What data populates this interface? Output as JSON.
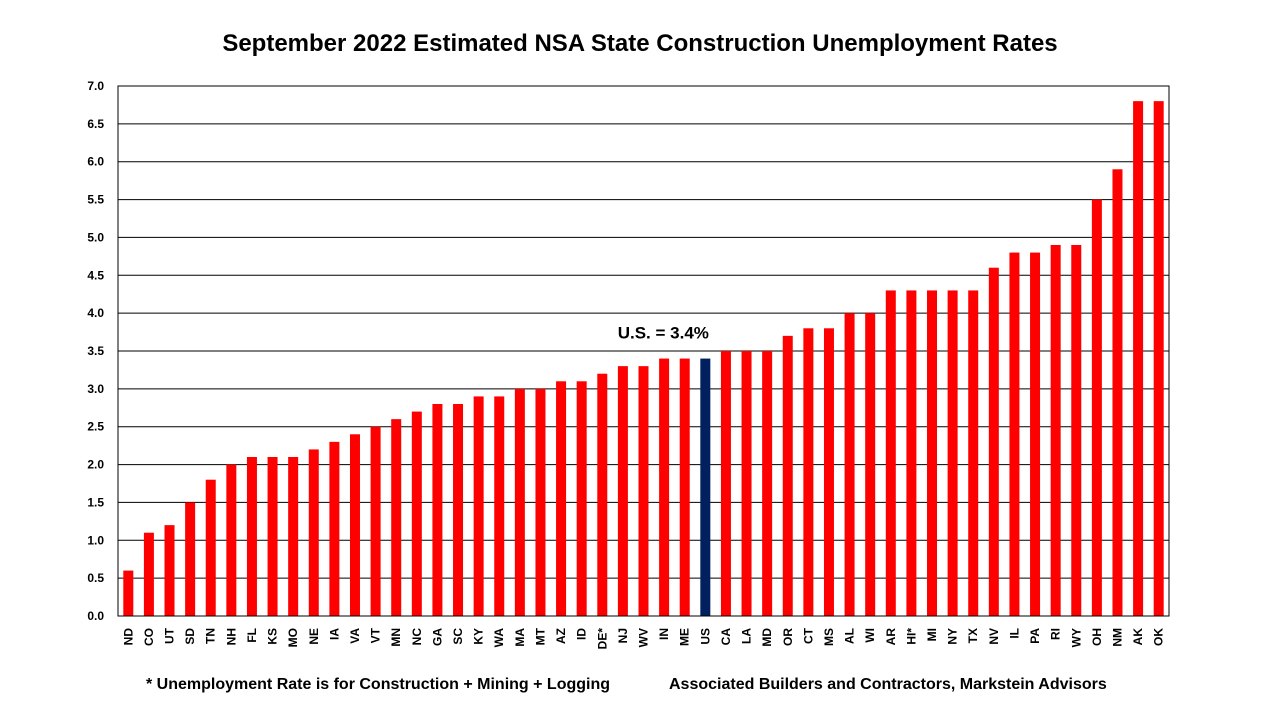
{
  "chart_data": {
    "type": "bar",
    "title": "September 2022 Estimated NSA State Construction Unemployment Rates",
    "xlabel": "",
    "ylabel": "",
    "ylim": [
      0,
      7
    ],
    "yticks": [
      "0.0",
      "0.5",
      "1.0",
      "1.5",
      "2.0",
      "2.5",
      "3.0",
      "3.5",
      "4.0",
      "4.5",
      "5.0",
      "5.5",
      "6.0",
      "6.5",
      "7.0"
    ],
    "grid": "horizontal",
    "categories": [
      "ND",
      "CO",
      "UT",
      "SD",
      "TN",
      "NH",
      "FL",
      "KS",
      "MO",
      "NE",
      "IA",
      "VA",
      "VT",
      "MN",
      "NC",
      "GA",
      "SC",
      "KY",
      "WA",
      "MA",
      "MT",
      "AZ",
      "ID",
      "DE*",
      "NJ",
      "WV",
      "IN",
      "ME",
      "US",
      "CA",
      "LA",
      "MD",
      "OR",
      "CT",
      "MS",
      "AL",
      "WI",
      "AR",
      "HI*",
      "MI",
      "NY",
      "TX",
      "NV",
      "IL",
      "PA",
      "RI",
      "WY",
      "OH",
      "NM",
      "AK",
      "OK"
    ],
    "values": [
      0.6,
      1.1,
      1.2,
      1.5,
      1.8,
      2.0,
      2.1,
      2.1,
      2.1,
      2.2,
      2.3,
      2.4,
      2.5,
      2.6,
      2.7,
      2.8,
      2.8,
      2.9,
      2.9,
      3.0,
      3.0,
      3.1,
      3.1,
      3.2,
      3.3,
      3.3,
      3.4,
      3.4,
      3.4,
      3.5,
      3.5,
      3.5,
      3.7,
      3.8,
      3.8,
      4.0,
      4.0,
      4.3,
      4.3,
      4.3,
      4.3,
      4.3,
      4.6,
      4.8,
      4.8,
      4.9,
      4.9,
      5.5,
      5.9,
      6.8,
      6.8
    ],
    "bar_color": "#FF0000",
    "highlight_category": "US",
    "highlight_color": "#002060",
    "annotation": "U.S. = 3.4%"
  },
  "footnotes": {
    "left": "* Unemployment Rate is for Construction + Mining + Logging",
    "right": "Associated Builders and Contractors, Markstein Advisors"
  }
}
